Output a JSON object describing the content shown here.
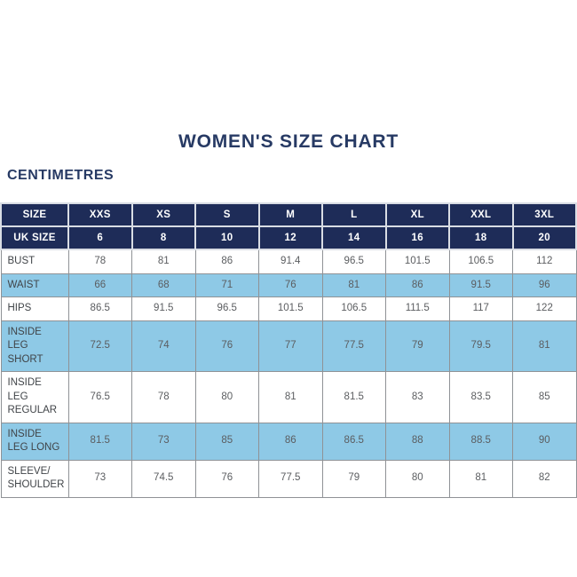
{
  "page": {
    "title": "WOMEN'S SIZE CHART",
    "units_label": "CENTIMETRES"
  },
  "colors": {
    "header_navy": "#1e2c58",
    "row_light_blue": "#8ec9e6",
    "row_white": "#ffffff",
    "grid_line": "#8f9296",
    "header_separator": "#d9dde4",
    "heading_text": "#273a64",
    "label_text": "#404448",
    "value_text": "#5b5d60"
  },
  "chart_data": {
    "type": "table",
    "title": "WOMEN'S SIZE CHART",
    "units": "CENTIMETRES",
    "columns": [
      "SIZE",
      "XXS",
      "XS",
      "S",
      "M",
      "L",
      "XL",
      "XXL",
      "3XL"
    ],
    "uk_size_row": {
      "label": "UK SIZE",
      "values": [
        "6",
        "8",
        "10",
        "12",
        "14",
        "16",
        "18",
        "20"
      ]
    },
    "rows": [
      {
        "label": "BUST",
        "highlight": false,
        "values": [
          "78",
          "81",
          "86",
          "91.4",
          "96.5",
          "101.5",
          "106.5",
          "112"
        ]
      },
      {
        "label": "WAIST",
        "highlight": true,
        "values": [
          "66",
          "68",
          "71",
          "76",
          "81",
          "86",
          "91.5",
          "96"
        ]
      },
      {
        "label": "HIPS",
        "highlight": false,
        "values": [
          "86.5",
          "91.5",
          "96.5",
          "101.5",
          "106.5",
          "111.5",
          "117",
          "122"
        ]
      },
      {
        "label": "INSIDE LEG SHORT",
        "highlight": true,
        "values": [
          "72.5",
          "74",
          "76",
          "77",
          "77.5",
          "79",
          "79.5",
          "81"
        ]
      },
      {
        "label": "INSIDE LEG REGULAR",
        "highlight": false,
        "values": [
          "76.5",
          "78",
          "80",
          "81",
          "81.5",
          "83",
          "83.5",
          "85"
        ]
      },
      {
        "label": "INSIDE LEG LONG",
        "highlight": true,
        "values": [
          "81.5",
          "73",
          "85",
          "86",
          "86.5",
          "88",
          "88.5",
          "90"
        ]
      },
      {
        "label": "SLEEVE/ SHOULDER",
        "highlight": false,
        "values": [
          "73",
          "74.5",
          "76",
          "77.5",
          "79",
          "80",
          "81",
          "82"
        ]
      }
    ]
  }
}
